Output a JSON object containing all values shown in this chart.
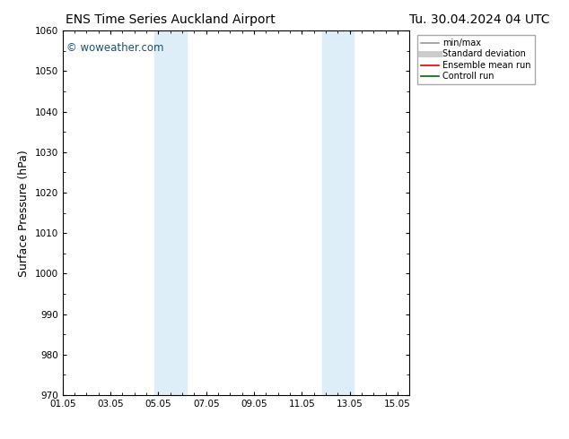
{
  "title_left": "ENS Time Series Auckland Airport",
  "title_right": "Tu. 30.04.2024 04 UTC",
  "ylabel": "Surface Pressure (hPa)",
  "ylim": [
    970,
    1060
  ],
  "yticks": [
    970,
    980,
    990,
    1000,
    1010,
    1020,
    1030,
    1040,
    1050,
    1060
  ],
  "xlim_start": 0.0,
  "xlim_end": 14.5,
  "xtick_labels": [
    "01.05",
    "03.05",
    "05.05",
    "07.05",
    "09.05",
    "11.05",
    "13.05",
    "15.05"
  ],
  "xtick_positions": [
    0,
    2,
    4,
    6,
    8,
    10,
    12,
    14
  ],
  "shaded_regions": [
    {
      "x_start": 3.83,
      "x_end": 5.17,
      "color": "#ddeef9"
    },
    {
      "x_start": 10.83,
      "x_end": 12.17,
      "color": "#ddeef9"
    }
  ],
  "watermark_text": "© woweather.com",
  "watermark_color": "#1a5276",
  "legend_entries": [
    {
      "label": "min/max",
      "color": "#999999",
      "lw": 1.2,
      "ls": "-"
    },
    {
      "label": "Standard deviation",
      "color": "#cccccc",
      "lw": 5,
      "ls": "-"
    },
    {
      "label": "Ensemble mean run",
      "color": "#dd0000",
      "lw": 1.2,
      "ls": "-"
    },
    {
      "label": "Controll run",
      "color": "#006600",
      "lw": 1.2,
      "ls": "-"
    }
  ],
  "bg_color": "#ffffff",
  "grid_color": "#cccccc",
  "title_fontsize": 10,
  "tick_fontsize": 7.5,
  "label_fontsize": 9,
  "watermark_fontsize": 8.5,
  "legend_fontsize": 7
}
